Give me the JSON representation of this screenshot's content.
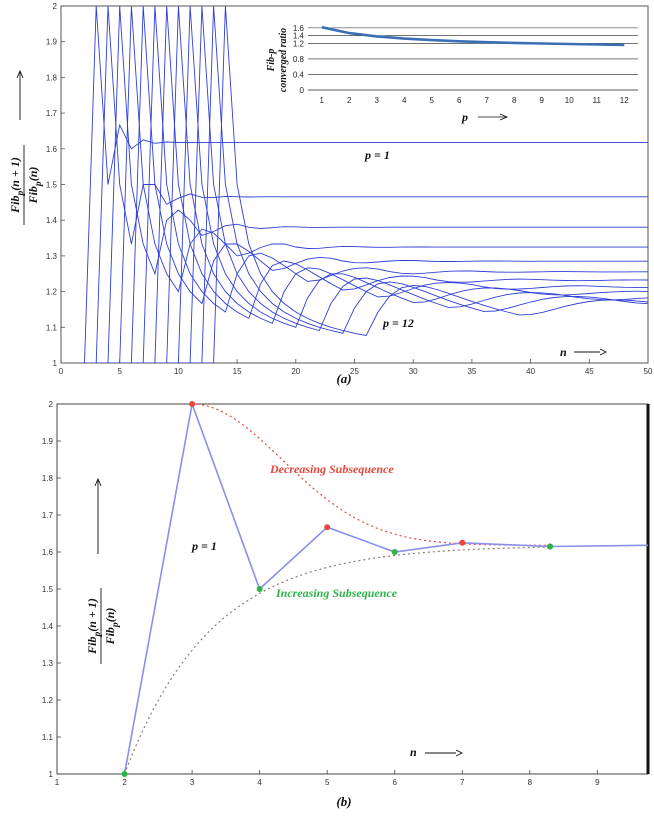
{
  "chart_data": [
    {
      "type": "line",
      "id": "a",
      "caption": "(a)",
      "ylabel_num": "Fib_p(n + 1)",
      "ylabel_den": "Fib_p(n)",
      "xlabel": "n",
      "xlim": [
        0,
        50
      ],
      "ylim": [
        1,
        2
      ],
      "xticks": [
        "0",
        "5",
        "10",
        "15",
        "20",
        "25",
        "30",
        "35",
        "40",
        "45",
        "50"
      ],
      "yticks": [
        "1",
        "1.1",
        "1.2",
        "1.3",
        "1.4",
        "1.5",
        "1.6",
        "1.7",
        "1.8",
        "1.9",
        "2"
      ],
      "annotations": [
        "p = 1",
        "p = 12"
      ],
      "converged_ratios": [
        1.618,
        1.4656,
        1.3803,
        1.3247,
        1.2852,
        1.2555,
        1.2321,
        1.2131,
        1.1973,
        1.1839,
        1.1724,
        1.1624
      ],
      "series_color": "#2f3fd6",
      "inset": {
        "type": "line",
        "ylabel": "Fib-p converged ratio",
        "ylabel_line1": "Fib-p",
        "ylabel_line2": "converged ratio",
        "xlabel": "p",
        "x": [
          1,
          2,
          3,
          4,
          5,
          6,
          7,
          8,
          9,
          10,
          11,
          12
        ],
        "values": [
          1.618,
          1.4656,
          1.3803,
          1.3247,
          1.2852,
          1.2555,
          1.2321,
          1.2131,
          1.1973,
          1.1839,
          1.1724,
          1.1624
        ],
        "xticks": [
          "1",
          "2",
          "3",
          "4",
          "5",
          "6",
          "7",
          "8",
          "9",
          "10",
          "11",
          "12"
        ],
        "yticks": [
          "0",
          "0.4",
          "0.8",
          "1.2",
          "1.4",
          "1.6"
        ],
        "ylim": [
          0,
          1.7
        ],
        "color": "#3a6fb5"
      }
    },
    {
      "type": "line",
      "id": "b",
      "caption": "(b)",
      "ylabel_num": "Fib_p(n + 1)",
      "ylabel_den": "Fib_p(n)",
      "xlabel": "n",
      "xlim": [
        1,
        9.75
      ],
      "ylim": [
        1,
        2
      ],
      "xticks": [
        "1",
        "2",
        "3",
        "4",
        "5",
        "6",
        "7",
        "8",
        "9"
      ],
      "yticks": [
        "1",
        "1.1",
        "1.2",
        "1.3",
        "1.4",
        "1.5",
        "1.6",
        "1.7",
        "1.8",
        "1.9",
        "2"
      ],
      "annotation": "p = 1",
      "series": [
        {
          "name": "ratio",
          "color": "#8a8fe8",
          "x": [
            2,
            3,
            4,
            5,
            6,
            7,
            8.3,
            9.75
          ],
          "values": [
            1.0,
            2.0,
            1.5,
            1.667,
            1.6,
            1.625,
            1.615,
            1.618
          ]
        },
        {
          "name": "Decreasing Subsequence",
          "color": "#e8453c",
          "x": [
            3,
            5,
            7,
            8.3
          ],
          "values": [
            2.0,
            1.667,
            1.625,
            1.615
          ]
        },
        {
          "name": "Increasing Subsequence",
          "color": "#2db34a",
          "x": [
            2,
            4,
            6,
            8.3
          ],
          "values": [
            1.0,
            1.5,
            1.6,
            1.615
          ]
        }
      ],
      "labels": {
        "decreasing": "Decreasing Subsequence",
        "increasing": "Increasing Subsequence"
      }
    }
  ]
}
